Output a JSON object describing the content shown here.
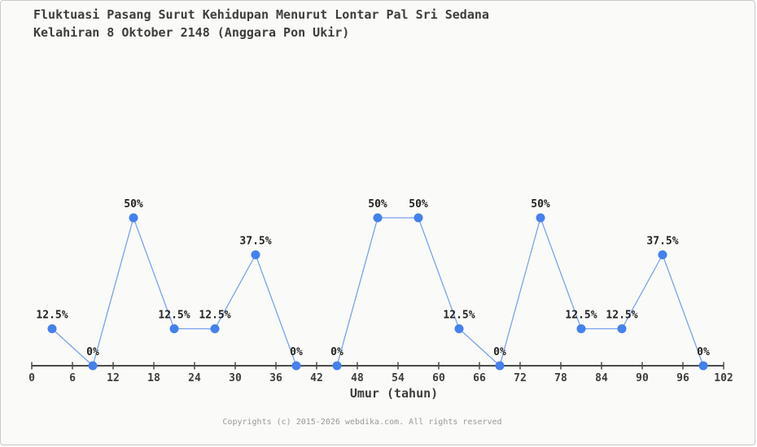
{
  "page": {
    "background": "#fafaf8",
    "border_color": "#c9c9c9"
  },
  "header": {
    "title_line1": "Fluktuasi Pasang Surut Kehidupan Menurut Lontar Pal Sri Sedana",
    "title_line2": "Kelahiran 8 Oktober 2148 (Anggara Pon Ukir)"
  },
  "footer": {
    "copyright": "Copyrights (c) 2015-2026 webdika.com. All rights reserved"
  },
  "chart_data": {
    "type": "line",
    "title": "Fluktuasi Pasang Surut Kehidupan Menurut Lontar Pal Sri Sedana Kelahiran 8 Oktober 2148 (Anggara Pon Ukir)",
    "xlabel": "Umur (tahun)",
    "ylabel": "",
    "x": [
      3,
      9,
      15,
      21,
      27,
      33,
      39,
      45,
      51,
      57,
      63,
      69,
      75,
      81,
      87,
      93,
      99
    ],
    "values": [
      12.5,
      0,
      50,
      12.5,
      12.5,
      37.5,
      0,
      0,
      50,
      50,
      12.5,
      0,
      50,
      12.5,
      12.5,
      37.5,
      0
    ],
    "point_labels": [
      "12.5%",
      "0%",
      "50%",
      "12.5%",
      "12.5%",
      "37.5%",
      "0%",
      "0%",
      "50%",
      "50%",
      "12.5%",
      "0%",
      "50%",
      "12.5%",
      "12.5%",
      "37.5%",
      "0%"
    ],
    "x_ticks": [
      0,
      6,
      12,
      18,
      24,
      30,
      36,
      42,
      48,
      54,
      60,
      66,
      72,
      78,
      84,
      90,
      96,
      102
    ],
    "xlim": [
      0,
      102
    ],
    "ylim": [
      0,
      50
    ],
    "grid": false,
    "legend": "none",
    "y_axis_visible": false,
    "line_color": "#74a0ee",
    "marker_color": "#4480ee",
    "axis_color": "#4a4a4a",
    "tick_label_color": "#3d3d3d",
    "point_label_color": "#222222"
  }
}
